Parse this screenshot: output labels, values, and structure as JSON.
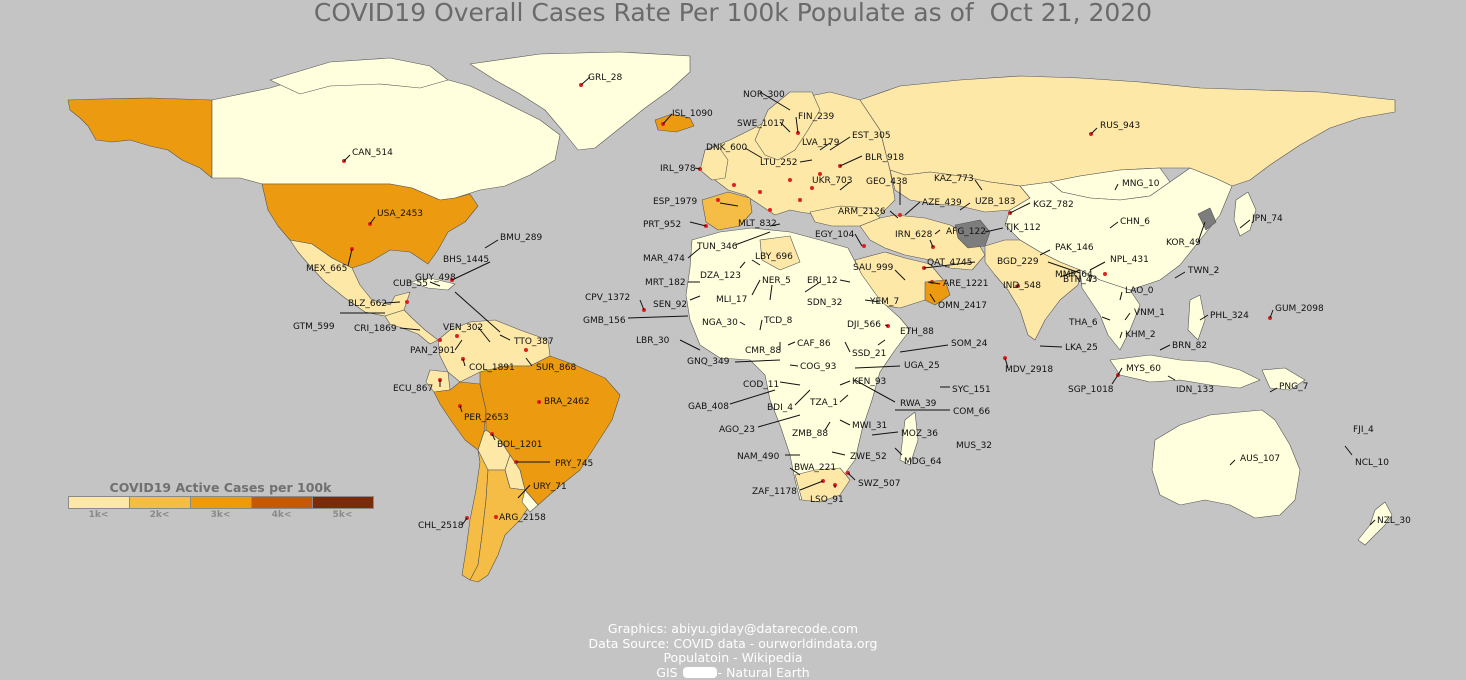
{
  "title": "COVID19 Overall Cases Rate Per 100k Populate as of  Oct 21, 2020",
  "legend": {
    "title": "COVID19 Active Cases per 100k",
    "labels": [
      "1k<",
      "2k<",
      "3k<",
      "4k<",
      "5k<"
    ],
    "colors": [
      "#fde8a8",
      "#f5bd45",
      "#ec9b10",
      "#c25a08",
      "#7a2c0a"
    ]
  },
  "credits": {
    "line1": "Graphics: abiyu.giday@datarecode.com",
    "line2": "Data Source: COVID data - ourworldindata.org",
    "line3": "Populatoin - Wikipedia",
    "line4_left": "GIS",
    "line4_right": "- Natural Earth"
  },
  "colors": {
    "background": "#c4c4c4",
    "ocean_title": "#6a6a6a",
    "tier0": "#ffffde",
    "tier1": "#fde8a8",
    "tier2": "#f5bd45",
    "tier3": "#ec9b10",
    "nodata": "#7d7d7d",
    "marker": "#e02020",
    "border": "#555555"
  },
  "countries": [
    {
      "label": "GRL_28"
    },
    {
      "label": "ISL_1090"
    },
    {
      "label": "NOR_300"
    },
    {
      "label": "FIN_239"
    },
    {
      "label": "SWE_1017"
    },
    {
      "label": "EST_305"
    },
    {
      "label": "LVA_179"
    },
    {
      "label": "DNK_600"
    },
    {
      "label": "LTU_252"
    },
    {
      "label": "BLR_918"
    },
    {
      "label": "IRL_978"
    },
    {
      "label": "UKR_703"
    },
    {
      "label": "GEO_438"
    },
    {
      "label": "KAZ_773"
    },
    {
      "label": "RUS_943"
    },
    {
      "label": "MNG_10"
    },
    {
      "label": "CAN_514"
    },
    {
      "label": "USA_2453"
    },
    {
      "label": "ESP_1979"
    },
    {
      "label": "PRT_952"
    },
    {
      "label": "AZE_439"
    },
    {
      "label": "UZB_183"
    },
    {
      "label": "KGZ_782"
    },
    {
      "label": "ARM_2126"
    },
    {
      "label": "MLT_832"
    },
    {
      "label": "TJK_112"
    },
    {
      "label": "AFG_122"
    },
    {
      "label": "CHN_6"
    },
    {
      "label": "JPN_74"
    },
    {
      "label": "TUN_346"
    },
    {
      "label": "EGY_104"
    },
    {
      "label": "IRN_628"
    },
    {
      "label": "KOR_49"
    },
    {
      "label": "BMU_289"
    },
    {
      "label": "PAK_146"
    },
    {
      "label": "MAR_474"
    },
    {
      "label": "LBY_696"
    },
    {
      "label": "QAT_4745"
    },
    {
      "label": "BGD_229"
    },
    {
      "label": "NPL_431"
    },
    {
      "label": "MEX_665"
    },
    {
      "label": "BHS_1445"
    },
    {
      "label": "DZA_123"
    },
    {
      "label": "SAU_999"
    },
    {
      "label": "TWN_2"
    },
    {
      "label": "CUB_55"
    },
    {
      "label": "MRT_182"
    },
    {
      "label": "NER_5"
    },
    {
      "label": "ERI_12"
    },
    {
      "label": "ARE_1221"
    },
    {
      "label": "IND_548"
    },
    {
      "label": "BTN_43"
    },
    {
      "label": "CPV_1372"
    },
    {
      "label": "SEN_92"
    },
    {
      "label": "MLI_17"
    },
    {
      "label": "SDN_32"
    },
    {
      "label": "YEM_7"
    },
    {
      "label": "OMN_2417"
    },
    {
      "label": "MMR_64"
    },
    {
      "label": "LAO_0"
    },
    {
      "label": "BLZ_662"
    },
    {
      "label": "GUY_498"
    },
    {
      "label": "GMB_156"
    },
    {
      "label": "GTM_599"
    },
    {
      "label": "VNM_1"
    },
    {
      "label": "GUM_2098"
    },
    {
      "label": "NGA_30"
    },
    {
      "label": "TCD_8"
    },
    {
      "label": "DJI_566"
    },
    {
      "label": "THA_6"
    },
    {
      "label": "PHL_324"
    },
    {
      "label": "CRI_1869"
    },
    {
      "label": "VEN_302"
    },
    {
      "label": "LBR_30"
    },
    {
      "label": "ETH_88"
    },
    {
      "label": "KHM_2"
    },
    {
      "label": "TTO_387"
    },
    {
      "label": "PAN_2901"
    },
    {
      "label": "CAF_86"
    },
    {
      "label": "SOM_24"
    },
    {
      "label": "CMR_88"
    },
    {
      "label": "SSD_21"
    },
    {
      "label": "LKA_25"
    },
    {
      "label": "BRN_82"
    },
    {
      "label": "GNQ_349"
    },
    {
      "label": "COL_1891"
    },
    {
      "label": "SUR_868"
    },
    {
      "label": "COG_93"
    },
    {
      "label": "UGA_25"
    },
    {
      "label": "MDV_2918"
    },
    {
      "label": "MYS_60"
    },
    {
      "label": "ECU_867"
    },
    {
      "label": "KEN_93"
    },
    {
      "label": "SYC_151"
    },
    {
      "label": "SGP_1018"
    },
    {
      "label": "IDN_133"
    },
    {
      "label": "PNG_7"
    },
    {
      "label": "COD_11"
    },
    {
      "label": "GAB_408"
    },
    {
      "label": "BDI_4"
    },
    {
      "label": "RWA_39"
    },
    {
      "label": "TZA_1"
    },
    {
      "label": "COM_66"
    },
    {
      "label": "PER_2653"
    },
    {
      "label": "BRA_2462"
    },
    {
      "label": "AGO_23"
    },
    {
      "label": "MWI_31"
    },
    {
      "label": "ZMB_88"
    },
    {
      "label": "MOZ_36"
    },
    {
      "label": "MUS_32"
    },
    {
      "label": "FJI_4"
    },
    {
      "label": "BOL_1201"
    },
    {
      "label": "NAM_490"
    },
    {
      "label": "ZWE_52"
    },
    {
      "label": "MDG_64"
    },
    {
      "label": "AUS_107"
    },
    {
      "label": "NCL_10"
    },
    {
      "label": "PRY_745"
    },
    {
      "label": "BWA_221"
    },
    {
      "label": "SWZ_507"
    },
    {
      "label": "ZAF_1178"
    },
    {
      "label": "URY_71"
    },
    {
      "label": "LSO_91"
    },
    {
      "label": "CHL_2518"
    },
    {
      "label": "ARG_2158"
    },
    {
      "label": "NZL_30"
    }
  ]
}
